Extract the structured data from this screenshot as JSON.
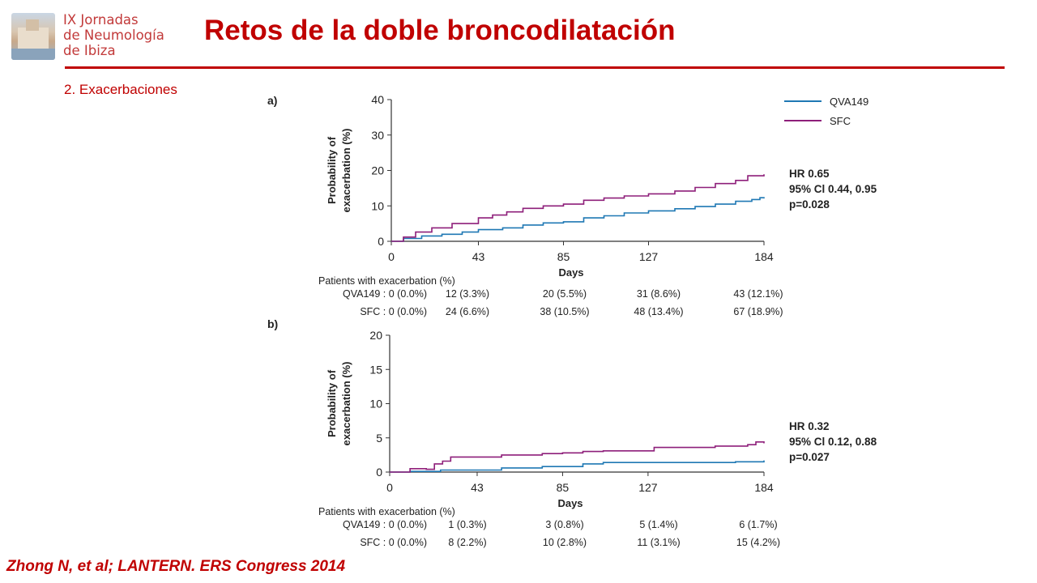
{
  "logo": {
    "line1": "IX Jornadas",
    "line2": "de Neumología",
    "line3": "de Ibiza"
  },
  "header": {
    "title": "Retos de la doble broncodilatación"
  },
  "section": {
    "label": "2. Exacerbaciones"
  },
  "footer": {
    "citation": "Zhong N, et al; LANTERN. ERS Congress 2014"
  },
  "colors": {
    "accent": "#c00000",
    "qva149": "#1f78b4",
    "sfc": "#8e1f7a"
  },
  "chart_data": [
    {
      "type": "line",
      "panel_label": "a)",
      "ylabel": [
        "Probability of",
        "exacerbation (%)"
      ],
      "xlabel": "Days",
      "ylim": [
        0,
        40
      ],
      "yticks": [
        0,
        10,
        20,
        30,
        40
      ],
      "xlim": [
        0,
        184
      ],
      "xticks": [
        0,
        43,
        85,
        127,
        184
      ],
      "legend": [
        "QVA149",
        "SFC"
      ],
      "legend_position": "top-right",
      "series": [
        {
          "name": "QVA149",
          "color": "#1f78b4",
          "points": [
            [
              0,
              0
            ],
            [
              6,
              0.8
            ],
            [
              15,
              1.5
            ],
            [
              25,
              2.0
            ],
            [
              35,
              2.6
            ],
            [
              43,
              3.3
            ],
            [
              55,
              3.8
            ],
            [
              65,
              4.6
            ],
            [
              75,
              5.2
            ],
            [
              85,
              5.5
            ],
            [
              95,
              6.6
            ],
            [
              105,
              7.2
            ],
            [
              115,
              8.0
            ],
            [
              127,
              8.6
            ],
            [
              140,
              9.2
            ],
            [
              150,
              9.8
            ],
            [
              160,
              10.5
            ],
            [
              170,
              11.3
            ],
            [
              178,
              11.8
            ],
            [
              182,
              12.3
            ],
            [
              184,
              12.1
            ]
          ]
        },
        {
          "name": "SFC",
          "color": "#8e1f7a",
          "points": [
            [
              0,
              0
            ],
            [
              6,
              1.2
            ],
            [
              12,
              2.6
            ],
            [
              20,
              3.8
            ],
            [
              30,
              5.0
            ],
            [
              43,
              6.6
            ],
            [
              50,
              7.4
            ],
            [
              57,
              8.3
            ],
            [
              65,
              9.3
            ],
            [
              75,
              10.0
            ],
            [
              85,
              10.5
            ],
            [
              95,
              11.6
            ],
            [
              105,
              12.2
            ],
            [
              115,
              12.8
            ],
            [
              127,
              13.4
            ],
            [
              140,
              14.2
            ],
            [
              150,
              15.2
            ],
            [
              160,
              16.3
            ],
            [
              170,
              17.2
            ],
            [
              176,
              18.5
            ],
            [
              184,
              18.9
            ]
          ]
        }
      ],
      "annotation": [
        "HR 0.65",
        "95% Cl 0.44, 0.95",
        "p=0.028"
      ],
      "table": {
        "title": "Patients with exacerbation (%)",
        "rows": [
          {
            "label": "QVA149 : 0 (0.0%)",
            "values": [
              "12 (3.3%)",
              "20 (5.5%)",
              "31 (8.6%)",
              "43 (12.1%)"
            ]
          },
          {
            "label": "SFC : 0 (0.0%)",
            "values": [
              "24 (6.6%)",
              "38 (10.5%)",
              "48 (13.4%)",
              "67 (18.9%)"
            ]
          }
        ]
      }
    },
    {
      "type": "line",
      "panel_label": "b)",
      "ylabel": [
        "Probability of",
        "exacerbation (%)"
      ],
      "xlabel": "Days",
      "ylim": [
        0,
        20
      ],
      "yticks": [
        0,
        5,
        10,
        15,
        20
      ],
      "xlim": [
        0,
        184
      ],
      "xticks": [
        0,
        43,
        85,
        127,
        184
      ],
      "series": [
        {
          "name": "QVA149",
          "color": "#1f78b4",
          "points": [
            [
              0,
              0
            ],
            [
              10,
              0.1
            ],
            [
              25,
              0.3
            ],
            [
              43,
              0.3
            ],
            [
              55,
              0.6
            ],
            [
              75,
              0.8
            ],
            [
              85,
              0.8
            ],
            [
              95,
              1.2
            ],
            [
              105,
              1.4
            ],
            [
              127,
              1.4
            ],
            [
              150,
              1.4
            ],
            [
              170,
              1.5
            ],
            [
              184,
              1.7
            ]
          ]
        },
        {
          "name": "SFC",
          "color": "#8e1f7a",
          "points": [
            [
              0,
              0
            ],
            [
              10,
              0.5
            ],
            [
              18,
              0.4
            ],
            [
              22,
              1.2
            ],
            [
              26,
              1.6
            ],
            [
              30,
              2.2
            ],
            [
              43,
              2.2
            ],
            [
              55,
              2.5
            ],
            [
              75,
              2.7
            ],
            [
              85,
              2.8
            ],
            [
              95,
              3.0
            ],
            [
              105,
              3.1
            ],
            [
              127,
              3.1
            ],
            [
              130,
              3.6
            ],
            [
              160,
              3.8
            ],
            [
              176,
              4.0
            ],
            [
              180,
              4.4
            ],
            [
              184,
              4.2
            ]
          ]
        }
      ],
      "annotation": [
        "HR 0.32",
        "95% Cl 0.12, 0.88",
        "p=0.027"
      ],
      "table": {
        "title": "Patients with exacerbation (%)",
        "rows": [
          {
            "label": "QVA149 : 0 (0.0%)",
            "values": [
              "1 (0.3%)",
              "3 (0.8%)",
              "5 (1.4%)",
              "6 (1.7%)"
            ]
          },
          {
            "label": "SFC : 0 (0.0%)",
            "values": [
              "8 (2.2%)",
              "10 (2.8%)",
              "11 (3.1%)",
              "15 (4.2%)"
            ]
          }
        ]
      }
    }
  ]
}
